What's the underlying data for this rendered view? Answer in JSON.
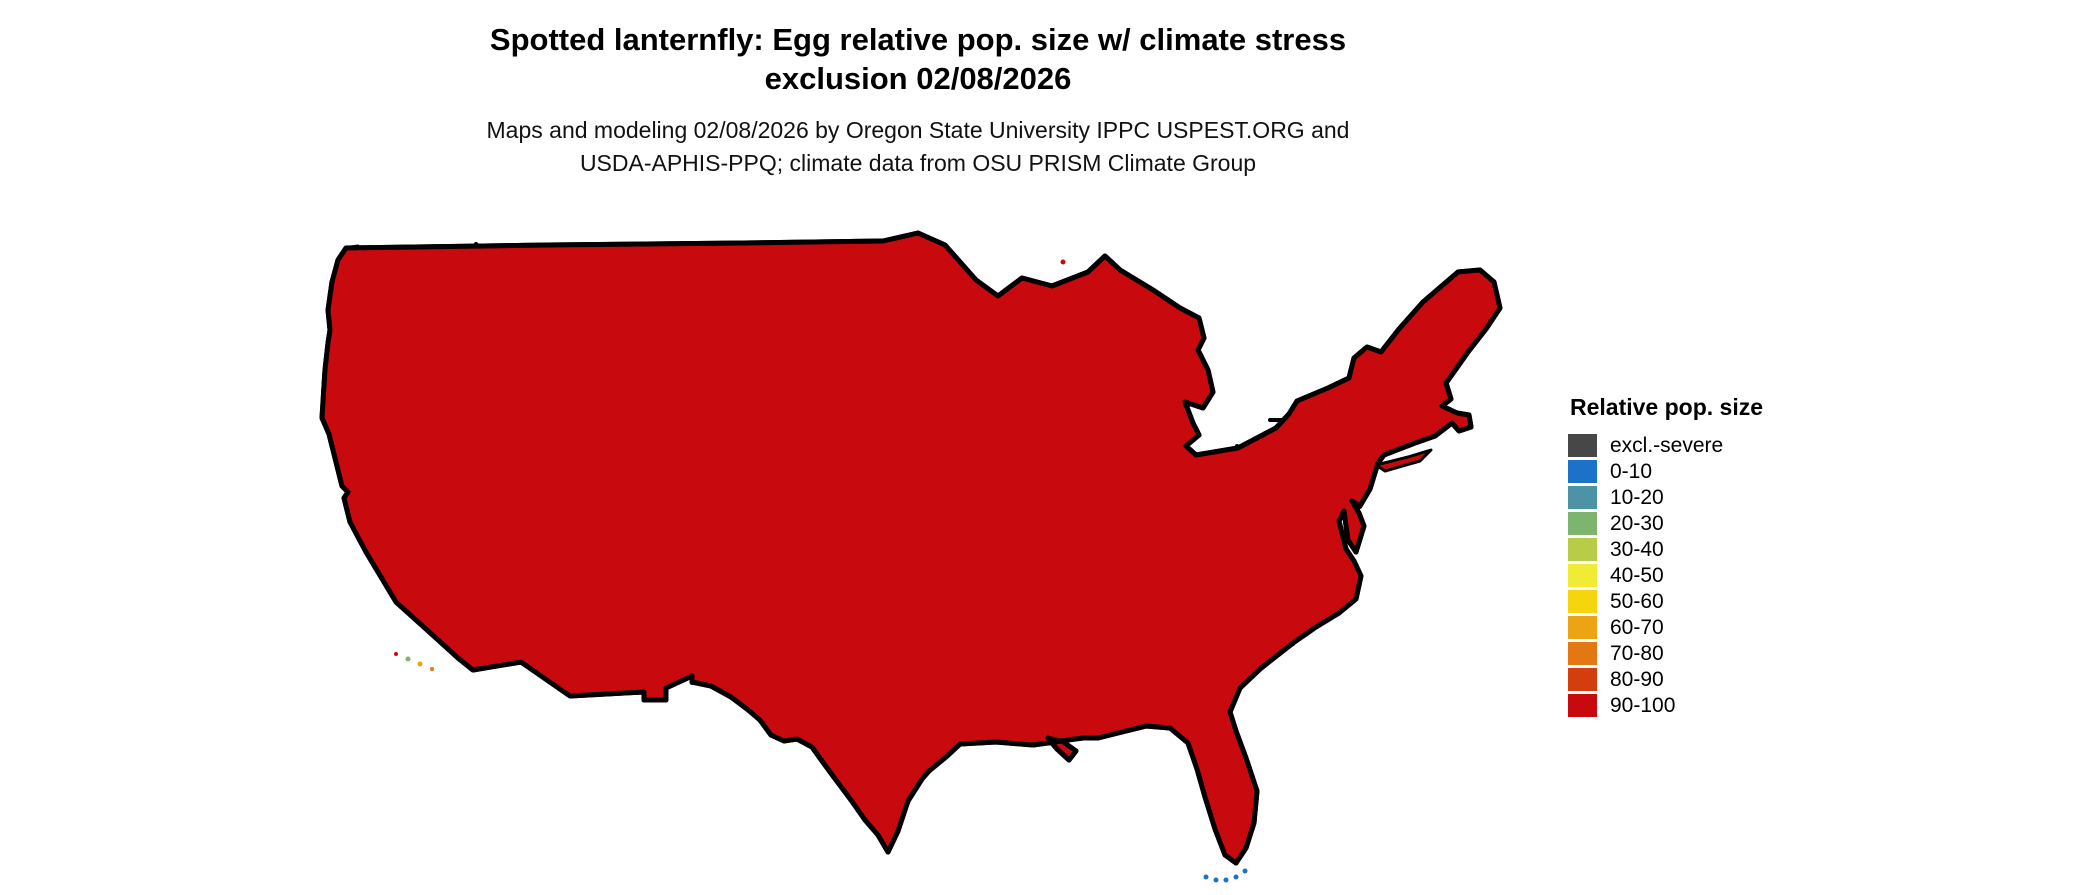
{
  "title": {
    "line1": "Spotted lanternfly: Egg relative pop. size w/ climate stress",
    "line2": "exclusion 02/08/2026"
  },
  "subtitle": {
    "line1": "Maps and modeling 02/08/2026 by Oregon State University IPPC USPEST.ORG and",
    "line2": "USDA-APHIS-PPQ; climate data from OSU PRISM Climate Group"
  },
  "legend": {
    "title": "Relative pop. size",
    "items": [
      {
        "key": "excl",
        "label": "excl.-severe"
      },
      {
        "key": "b0",
        "label": "0-10"
      },
      {
        "key": "b10",
        "label": "10-20"
      },
      {
        "key": "b20",
        "label": "20-30"
      },
      {
        "key": "b30",
        "label": "30-40"
      },
      {
        "key": "b40",
        "label": "40-50"
      },
      {
        "key": "b50",
        "label": "50-60"
      },
      {
        "key": "b60",
        "label": "60-70"
      },
      {
        "key": "b70",
        "label": "70-80"
      },
      {
        "key": "b80",
        "label": "80-90"
      },
      {
        "key": "b90",
        "label": "90-100"
      }
    ],
    "palette": {
      "excl": "#474747",
      "b0": "#1C71C8",
      "b10": "#4B93A5",
      "b20": "#7DB46E",
      "b30": "#B9CC48",
      "b40": "#F0EC35",
      "b50": "#F5D50D",
      "b60": "#ECA415",
      "b70": "#E37711",
      "b80": "#D43E0F",
      "b90": "#C80A0E"
    },
    "border_color": "#000000",
    "water_color": "#ffffff"
  }
}
